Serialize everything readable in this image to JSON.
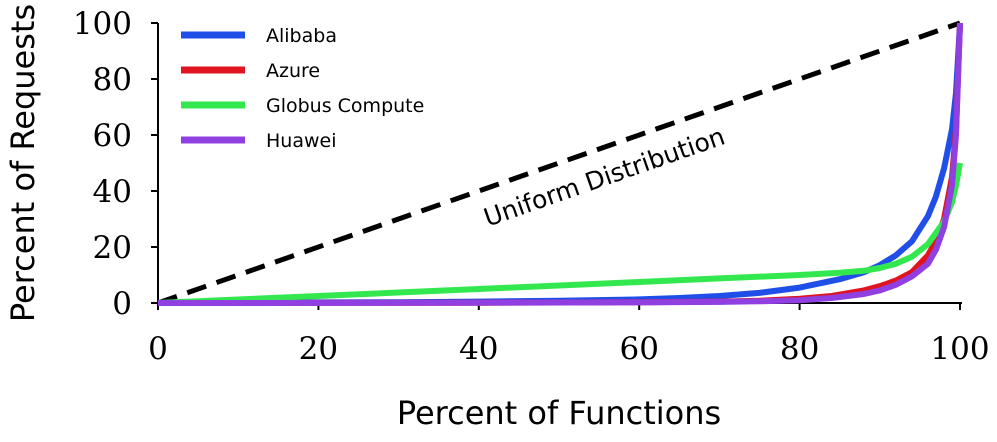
{
  "chart_data": {
    "type": "line",
    "xlabel": "Percent of Functions",
    "ylabel": "Percent of Requests",
    "xlim": [
      0,
      100
    ],
    "ylim": [
      0,
      100
    ],
    "x_ticks": [
      "0",
      "20",
      "40",
      "60",
      "80",
      "100"
    ],
    "y_ticks": [
      "0",
      "20",
      "40",
      "60",
      "80",
      "100"
    ],
    "grid": false,
    "legend_position": "top-left",
    "annotation": "Uniform Distribution",
    "reference_line": {
      "x": [
        0,
        100
      ],
      "y": [
        0,
        100
      ],
      "color": "#000000",
      "style": "dashed"
    },
    "series": [
      {
        "name": "Alibaba",
        "color": "#1f4fe8",
        "x": [
          0,
          10,
          20,
          30,
          40,
          50,
          60,
          65,
          70,
          75,
          80,
          85,
          88,
          90,
          92,
          94,
          96,
          97,
          98,
          99,
          99.5,
          100
        ],
        "y": [
          0,
          0.1,
          0.2,
          0.3,
          0.5,
          0.8,
          1.3,
          1.8,
          2.5,
          3.6,
          5.5,
          8.5,
          11,
          13.5,
          17,
          22,
          31,
          38,
          48,
          62,
          75,
          100
        ]
      },
      {
        "name": "Azure",
        "color": "#e0141e",
        "x": [
          0,
          20,
          40,
          60,
          70,
          75,
          80,
          84,
          88,
          90,
          92,
          94,
          96,
          97,
          98,
          99,
          99.5,
          100
        ],
        "y": [
          0,
          0.05,
          0.1,
          0.3,
          0.5,
          0.8,
          1.5,
          2.5,
          4.5,
          6,
          8,
          11,
          17,
          22,
          30,
          45,
          62,
          100
        ]
      },
      {
        "name": "Globus Compute",
        "color": "#33e84f",
        "x": [
          0,
          20,
          40,
          60,
          70,
          80,
          85,
          88,
          90,
          92,
          94,
          96,
          97,
          98,
          99,
          99.5,
          100
        ],
        "y": [
          0,
          2.5,
          5,
          7.5,
          8.8,
          10,
          10.8,
          11.5,
          12.5,
          14,
          16.5,
          21,
          25,
          29,
          36,
          42,
          50
        ]
      },
      {
        "name": "Huawei",
        "color": "#9040e0",
        "x": [
          0,
          20,
          40,
          60,
          70,
          75,
          80,
          84,
          88,
          90,
          92,
          94,
          96,
          97,
          98,
          99,
          99.5,
          100
        ],
        "y": [
          0,
          0.05,
          0.1,
          0.2,
          0.4,
          0.6,
          1.0,
          1.8,
          3.2,
          4.5,
          6.5,
          9.5,
          14,
          19,
          27,
          42,
          60,
          100
        ]
      }
    ]
  }
}
